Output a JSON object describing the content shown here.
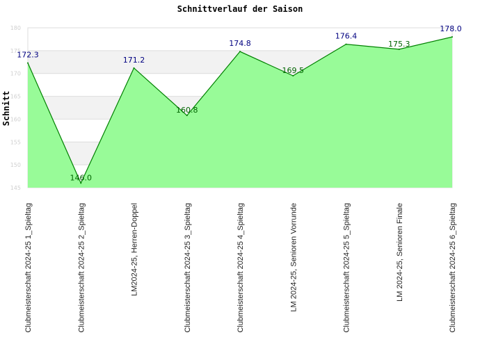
{
  "chart_data": {
    "type": "area",
    "title": "Schnittverlauf der Saison",
    "xlabel": "",
    "ylabel": "Schnitt",
    "ylim": [
      145,
      180
    ],
    "yticks": [
      145,
      150,
      155,
      160,
      165,
      170,
      175,
      180
    ],
    "grid": true,
    "legend": "none",
    "categories": [
      "Clubmeisterschaft 2024-25   1_Spieltag",
      "Clubmeisterschaft 2024-25   2_Spieltag",
      "LM2024-25, Herren-Doppel",
      "Clubmeisterschaft 2024-25   3_Spieltag",
      "Clubmeisterschaft 2024-25   4_Spieltag",
      "LM 2024-25, Senioren Vorrunde",
      "Clubmeisterschaft 2024-25   5_Spieltag",
      "LM 2024-25, Senioren Finale",
      "Clubmeisterschaft 2024-25   6_Spieltag"
    ],
    "series": [
      {
        "values": [
          172.3,
          146.0,
          171.2,
          160.8,
          174.8,
          169.5,
          176.4,
          175.3,
          178.0
        ],
        "labels": [
          "172.3",
          "146.0",
          "171.2",
          "160.8",
          "174.8",
          "169.5",
          "176.4",
          "175.3",
          "178.0"
        ]
      }
    ],
    "colors": {
      "fill": "#98fb98",
      "line": "#008000",
      "label_above": "#000080",
      "label_below": "#006400",
      "band": "#f2f2f2",
      "grid": "#dddddd"
    }
  }
}
